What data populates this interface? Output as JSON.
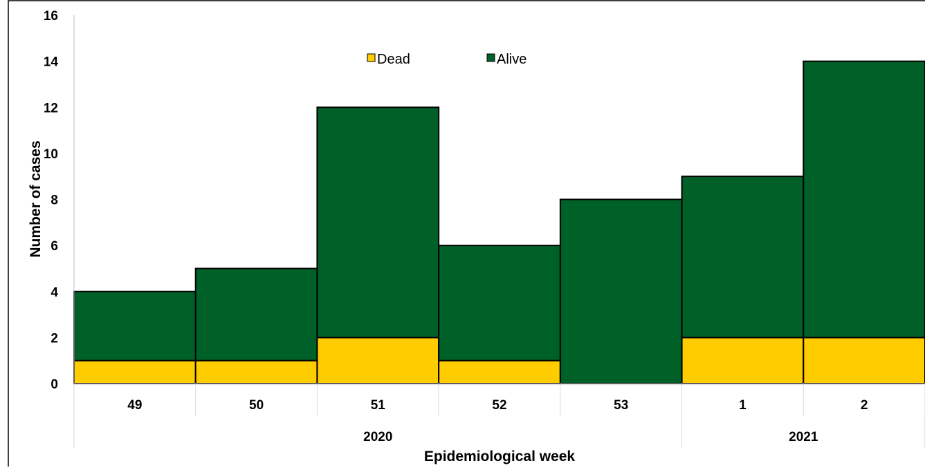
{
  "chart_data": {
    "type": "bar",
    "stacked": true,
    "categories": [
      "49",
      "50",
      "51",
      "52",
      "53",
      "1",
      "2"
    ],
    "groups": [
      {
        "label": "2020",
        "categories": [
          "49",
          "50",
          "51",
          "52",
          "53"
        ]
      },
      {
        "label": "2021",
        "categories": [
          "1",
          "2"
        ]
      }
    ],
    "series": [
      {
        "name": "Dead",
        "color": "#FFCC00",
        "values": [
          1,
          1,
          2,
          1,
          0,
          2,
          2
        ]
      },
      {
        "name": "Alive",
        "color": "#006128",
        "values": [
          3,
          4,
          10,
          5,
          8,
          7,
          12
        ]
      }
    ],
    "xlabel": "Epidemiological week",
    "ylabel": "Number of cases",
    "ylim": [
      0,
      16
    ],
    "yticks": [
      "0",
      "2",
      "4",
      "6",
      "8",
      "10",
      "12",
      "14",
      "16"
    ],
    "legend_position": "top-center",
    "grid": false
  }
}
